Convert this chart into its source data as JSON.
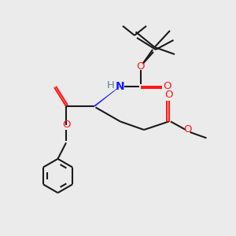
{
  "background_color": "#ebebeb",
  "bond_color": "#1a1a1a",
  "o_color": "#ff1a1a",
  "n_color": "#1a1aff",
  "h_color": "#558888",
  "line_width": 1.5,
  "figsize": [
    3.0,
    3.0
  ],
  "dpi": 100,
  "xlim": [
    0,
    10
  ],
  "ylim": [
    0,
    10
  ]
}
